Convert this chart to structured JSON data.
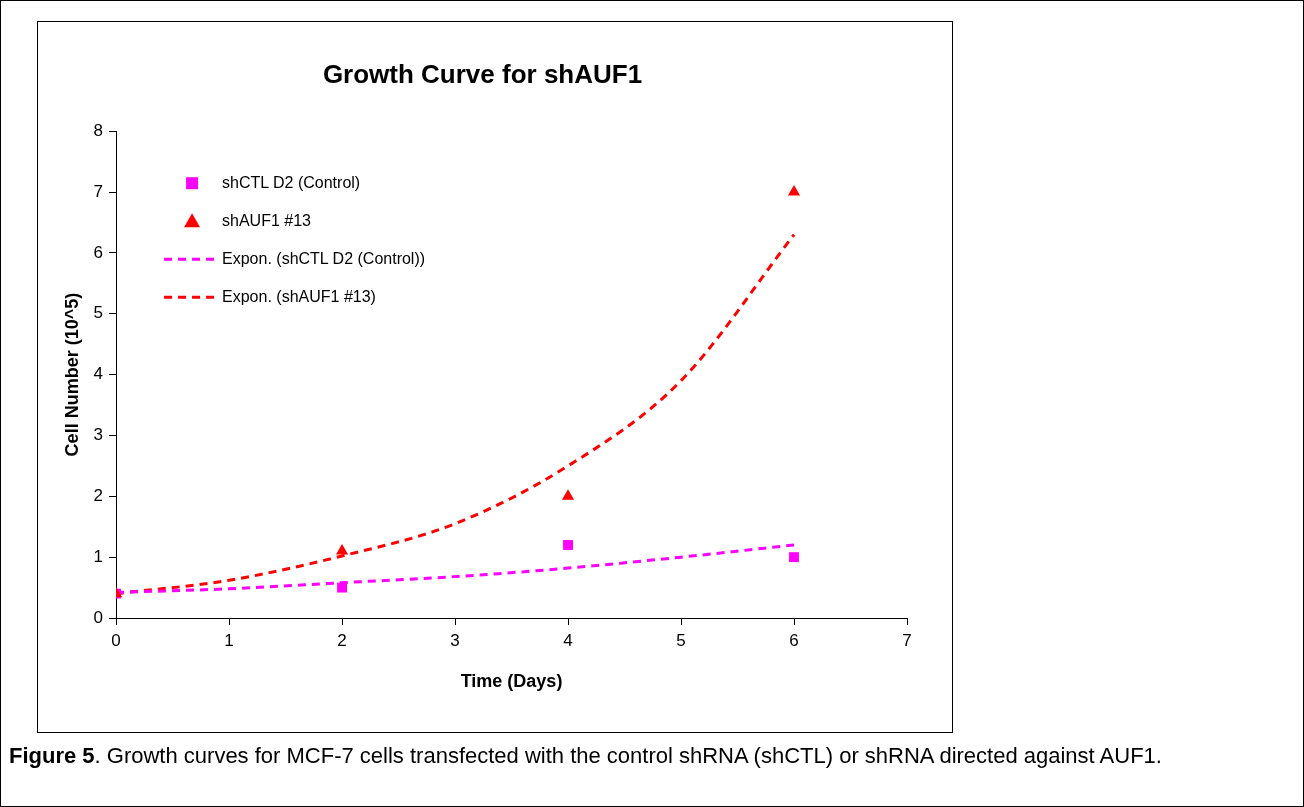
{
  "chart_data": {
    "type": "scatter",
    "title": "Growth Curve for shAUF1",
    "xlabel": "Time (Days)",
    "ylabel": "Cell Number (10^5)",
    "xlim": [
      0,
      7
    ],
    "xticks": [
      0,
      1,
      2,
      3,
      4,
      5,
      6,
      7
    ],
    "ylim": [
      0,
      8
    ],
    "yticks": [
      0,
      1,
      2,
      3,
      4,
      5,
      6,
      7,
      8
    ],
    "grid": false,
    "legend": "top left",
    "series": [
      {
        "name": "shCTL D2 (Control)",
        "color": "#ff00ff",
        "marker": "square",
        "x": [
          0,
          2,
          4,
          6
        ],
        "values": [
          0.4,
          0.5,
          1.2,
          1.0
        ]
      },
      {
        "name": "shAUF1 #13",
        "color": "#ff0000",
        "marker": "triangle",
        "x": [
          0,
          2,
          4,
          6
        ],
        "values": [
          0.4,
          1.1,
          2.0,
          7.0
        ]
      },
      {
        "name": "Expon. (shCTL D2 (Control))",
        "type": "line",
        "color": "#ff00ff",
        "marker": "none",
        "line_style": "dashed",
        "x": [
          0,
          1,
          2,
          3,
          4,
          5,
          6
        ],
        "values": [
          0.42,
          0.48,
          0.58,
          0.68,
          0.82,
          1.0,
          1.2
        ]
      },
      {
        "name": "Expon. (shAUF1 #13)",
        "type": "line",
        "color": "#ff0000",
        "marker": "none",
        "line_style": "dashed",
        "x": [
          0,
          1,
          2,
          3,
          4,
          5,
          6
        ],
        "values": [
          0.4,
          0.62,
          1.02,
          1.55,
          2.5,
          3.9,
          6.3
        ]
      }
    ],
    "annotations": [
      "Figure 5.  Growth curves for MCF-7 cells transfected with the control shRNA (shCTL) or shRNA directed against AUF1."
    ]
  }
}
